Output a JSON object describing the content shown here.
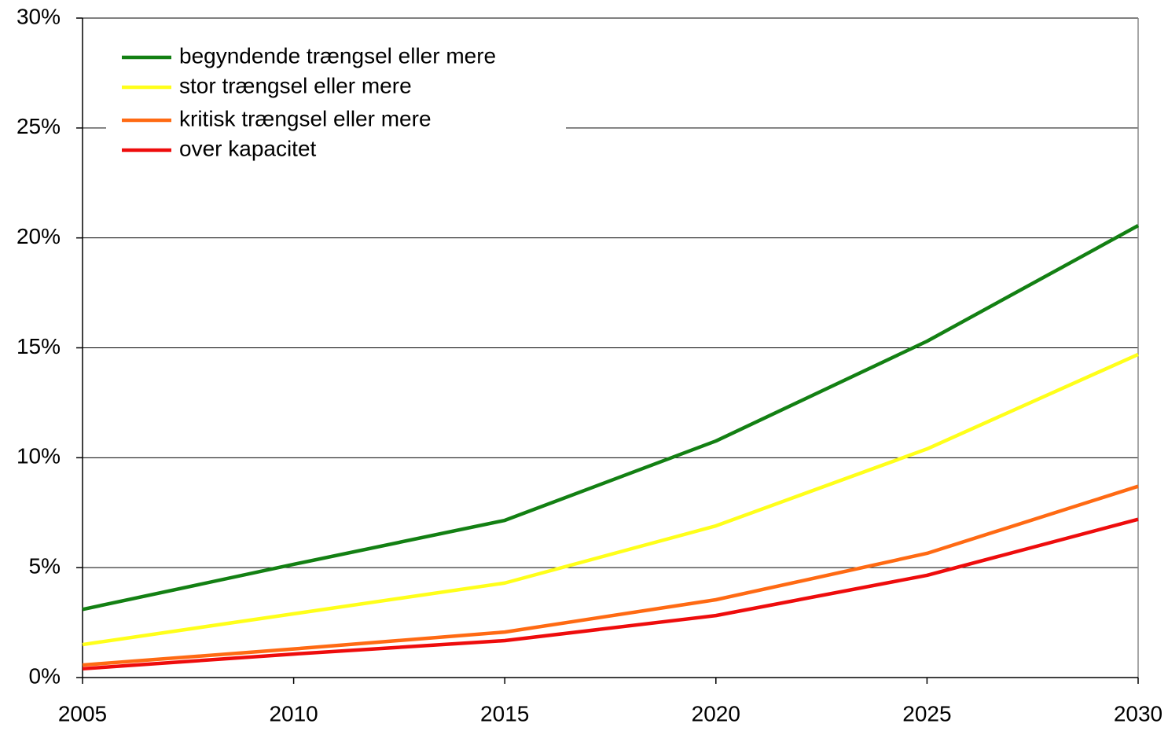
{
  "chart_data": {
    "type": "line",
    "x": [
      2005,
      2010,
      2015,
      2020,
      2025,
      2030
    ],
    "series": [
      {
        "name": "begyndende trængsel eller mere",
        "color": "#138013",
        "values": [
          3.1,
          5.15,
          7.15,
          10.76,
          15.3,
          20.56
        ]
      },
      {
        "name": "stor trængsel eller mere",
        "color": "#ffff1a",
        "values": [
          1.5,
          2.9,
          4.3,
          6.9,
          10.4,
          14.7
        ]
      },
      {
        "name": "kritisk trængsel eller mere",
        "color": "#ff6a13",
        "values": [
          0.57,
          1.3,
          2.07,
          3.54,
          5.65,
          8.7
        ]
      },
      {
        "name": "over kapacitet",
        "color": "#ee0c0c",
        "values": [
          0.4,
          1.07,
          1.68,
          2.82,
          4.65,
          7.2
        ]
      }
    ],
    "xlim": [
      2005,
      2030
    ],
    "xticks": [
      2005,
      2010,
      2015,
      2020,
      2025,
      2030
    ],
    "ylim": [
      0,
      30
    ],
    "yticks": [
      {
        "value": 0,
        "label": "0%"
      },
      {
        "value": 5,
        "label": "5%"
      },
      {
        "value": 10,
        "label": "10%"
      },
      {
        "value": 15,
        "label": "15%"
      },
      {
        "value": 20,
        "label": "20%"
      },
      {
        "value": 25,
        "label": "25%"
      },
      {
        "value": 30,
        "label": "30%"
      }
    ],
    "grid": true,
    "legend": "upper left"
  }
}
